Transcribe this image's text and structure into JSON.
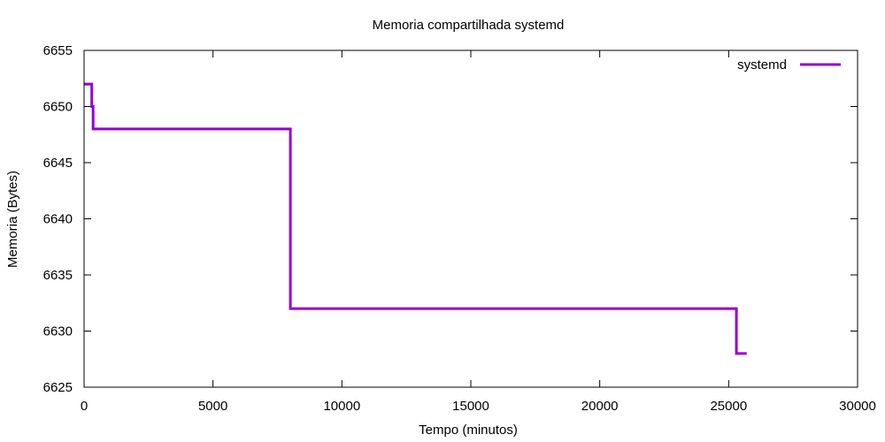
{
  "chart_data": {
    "type": "line",
    "title": "Memoria compartilhada systemd",
    "xlabel": "Tempo (minutos)",
    "ylabel": "Memoria (Bytes)",
    "xlim": [
      0,
      30000
    ],
    "ylim": [
      6625,
      6655
    ],
    "xticks": [
      0,
      5000,
      10000,
      15000,
      20000,
      25000,
      30000
    ],
    "yticks": [
      6625,
      6630,
      6635,
      6640,
      6645,
      6650,
      6655
    ],
    "grid": false,
    "legend_position": "top-right",
    "series": [
      {
        "name": "systemd",
        "color": "#9400d3",
        "step": true,
        "x": [
          0,
          300,
          300,
          350,
          350,
          8000,
          8000,
          25300,
          25300,
          25700
        ],
        "y": [
          6652,
          6652,
          6650,
          6650,
          6648,
          6648,
          6632,
          6632,
          6628,
          6628
        ]
      }
    ]
  }
}
